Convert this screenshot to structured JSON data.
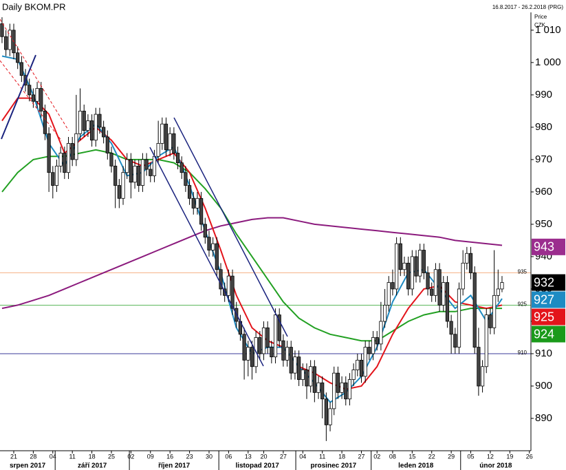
{
  "chart_data": {
    "type": "candlestick",
    "title": "Daily BKOM.PR",
    "subtitle": "16.8.2017 - 26.2.2018 (PRG)",
    "ylabel": "Price",
    "unit": "CZK",
    "ylim": [
      880,
      1017.2
    ],
    "yticks": [
      890,
      900,
      910,
      920,
      930,
      940,
      950,
      960,
      970,
      980,
      990,
      {
        "value": 1000,
        "label": "1 000"
      },
      {
        "value": 1010,
        "label": "1 010"
      }
    ],
    "xlim": [
      -0.52,
      135.4
    ],
    "xticks": [
      {
        "value": 3,
        "label": "21"
      },
      {
        "value": 8,
        "label": "28"
      },
      {
        "value": 13,
        "label": "04"
      },
      {
        "value": 18,
        "label": "11"
      },
      {
        "value": 23,
        "label": "18"
      },
      {
        "value": 28,
        "label": "25"
      },
      {
        "value": 33,
        "label": "02"
      },
      {
        "value": 38,
        "label": "09"
      },
      {
        "value": 43,
        "label": "16"
      },
      {
        "value": 48,
        "label": "23"
      },
      {
        "value": 53,
        "label": "30"
      },
      {
        "value": 58,
        "label": "06"
      },
      {
        "value": 63,
        "label": "13"
      },
      {
        "value": 67,
        "label": "20"
      },
      {
        "value": 72,
        "label": "27"
      },
      {
        "value": 77,
        "label": "04"
      },
      {
        "value": 82,
        "label": "11"
      },
      {
        "value": 87,
        "label": "18"
      },
      {
        "value": 92,
        "label": "27"
      },
      {
        "value": 96,
        "label": "02"
      },
      {
        "value": 100,
        "label": "08"
      },
      {
        "value": 105,
        "label": "15"
      },
      {
        "value": 110,
        "label": "22"
      },
      {
        "value": 115,
        "label": "29"
      },
      {
        "value": 120,
        "label": "05"
      },
      {
        "value": 125,
        "label": "12"
      },
      {
        "value": 130,
        "label": "19"
      },
      {
        "value": 135,
        "label": "26"
      }
    ],
    "months": [
      {
        "label": "srpen 2017",
        "start": -0.52,
        "end": 13.6
      },
      {
        "label": "září 2017",
        "start": 13.6,
        "end": 32.6
      },
      {
        "label": "říjen 2017",
        "start": 32.6,
        "end": 55.5
      },
      {
        "label": "listopad 2017",
        "start": 55.5,
        "end": 75.2
      },
      {
        "label": "prosinec 2017",
        "start": 75.2,
        "end": 94.5
      },
      {
        "label": "leden 2018",
        "start": 94.5,
        "end": 117.4
      },
      {
        "label": "únor 2018",
        "start": 117.4,
        "end": 135.4
      }
    ],
    "up_color": "#ffffff",
    "down_color": "#444444",
    "open": [
      1012,
      1008,
      1004,
      1010,
      1003,
      1000,
      996,
      993,
      990,
      988,
      992,
      985,
      978,
      966,
      962,
      968,
      972,
      966,
      975,
      970,
      978,
      985,
      979,
      982,
      976,
      984,
      980,
      977,
      972,
      968,
      962,
      958,
      966,
      970,
      963,
      968,
      962,
      970,
      967,
      965,
      971,
      975,
      981,
      973,
      978,
      972,
      969,
      966,
      962,
      958,
      955,
      958,
      950,
      946,
      942,
      944,
      936,
      930,
      928,
      934,
      924,
      920,
      916,
      908,
      912,
      906,
      915,
      910,
      918,
      912,
      909,
      922,
      914,
      908,
      912,
      904,
      909,
      902,
      905,
      900,
      906,
      898,
      901,
      896,
      888,
      893,
      904,
      898,
      901,
      896,
      902,
      905,
      908,
      903,
      912,
      910,
      915,
      913,
      920,
      925,
      932,
      930,
      944,
      936,
      938,
      930,
      940,
      934,
      942,
      935,
      930,
      928,
      936,
      925,
      932,
      920,
      916,
      912,
      930,
      938,
      941,
      935,
      912,
      900,
      906,
      922,
      918,
      928,
      930
    ],
    "high": [
      1014,
      1010,
      1012,
      1012,
      1005,
      1002,
      998,
      995,
      992,
      994,
      994,
      987,
      980,
      968,
      970,
      974,
      974,
      977,
      977,
      990,
      992,
      987,
      984,
      984,
      986,
      986,
      982,
      979,
      974,
      970,
      964,
      968,
      972,
      972,
      970,
      970,
      972,
      972,
      969,
      973,
      982,
      983,
      983,
      980,
      980,
      974,
      971,
      968,
      964,
      960,
      960,
      960,
      952,
      948,
      946,
      946,
      938,
      932,
      936,
      936,
      926,
      922,
      918,
      914,
      914,
      917,
      917,
      920,
      920,
      914,
      924,
      924,
      916,
      914,
      914,
      911,
      911,
      907,
      907,
      908,
      908,
      903,
      903,
      898,
      895,
      906,
      906,
      903,
      903,
      904,
      907,
      910,
      910,
      914,
      914,
      917,
      917,
      926,
      930,
      934,
      936,
      946,
      946,
      940,
      940,
      942,
      942,
      944,
      944,
      937,
      932,
      938,
      938,
      934,
      934,
      922,
      918,
      932,
      942,
      943,
      943,
      937,
      918,
      908,
      924,
      924,
      942,
      936,
      934
    ],
    "low": [
      1006,
      1002,
      1002,
      1001,
      998,
      994,
      991,
      988,
      986,
      986,
      983,
      976,
      960,
      958,
      960,
      966,
      964,
      964,
      968,
      968,
      976,
      977,
      977,
      974,
      974,
      978,
      975,
      970,
      966,
      955,
      955,
      956,
      964,
      958,
      961,
      960,
      960,
      965,
      963,
      963,
      969,
      973,
      971,
      971,
      970,
      967,
      964,
      960,
      956,
      953,
      953,
      948,
      944,
      940,
      940,
      934,
      928,
      926,
      926,
      922,
      918,
      914,
      902,
      903,
      902,
      904,
      908,
      908,
      910,
      907,
      907,
      912,
      906,
      906,
      902,
      902,
      900,
      900,
      896,
      898,
      895,
      896,
      890,
      883,
      886,
      891,
      896,
      896,
      894,
      894,
      900,
      903,
      901,
      901,
      908,
      908,
      911,
      911,
      918,
      923,
      928,
      928,
      934,
      934,
      928,
      928,
      932,
      932,
      933,
      928,
      926,
      926,
      923,
      923,
      918,
      910,
      910,
      910,
      928,
      936,
      933,
      910,
      897,
      898,
      904,
      916,
      916,
      926,
      929
    ],
    "close": [
      1008,
      1004,
      1010,
      1003,
      1000,
      996,
      993,
      990,
      988,
      992,
      985,
      978,
      966,
      962,
      968,
      972,
      966,
      975,
      970,
      978,
      985,
      979,
      982,
      976,
      984,
      980,
      977,
      972,
      968,
      962,
      958,
      966,
      970,
      963,
      968,
      962,
      970,
      967,
      965,
      971,
      975,
      981,
      973,
      978,
      972,
      969,
      966,
      962,
      958,
      955,
      958,
      950,
      946,
      942,
      944,
      936,
      930,
      928,
      934,
      924,
      920,
      916,
      908,
      912,
      906,
      915,
      910,
      918,
      912,
      909,
      922,
      914,
      908,
      912,
      904,
      909,
      902,
      905,
      900,
      906,
      898,
      901,
      896,
      888,
      893,
      904,
      898,
      901,
      896,
      902,
      905,
      908,
      903,
      912,
      910,
      915,
      913,
      920,
      925,
      932,
      930,
      944,
      936,
      938,
      930,
      940,
      934,
      942,
      935,
      930,
      928,
      936,
      925,
      932,
      920,
      916,
      912,
      930,
      938,
      941,
      935,
      912,
      900,
      906,
      922,
      918,
      928,
      930,
      932
    ],
    "lines_x": [
      0,
      4,
      8,
      12,
      16,
      20,
      24,
      28,
      32,
      36,
      40,
      44,
      48,
      52,
      56,
      60,
      64,
      68,
      72,
      76,
      80,
      84,
      88,
      92,
      96,
      100,
      104,
      108,
      112,
      116,
      120,
      124,
      128
    ],
    "series": [
      {
        "color": "#8b1a7d",
        "values": [
          924,
          925,
          926.5,
          928,
          930,
          932,
          934,
          936,
          938,
          940,
          942,
          944,
          946,
          948,
          949.5,
          950.5,
          951.5,
          952,
          952,
          951,
          950,
          949.5,
          949,
          948.5,
          948,
          947.5,
          947,
          946.5,
          946,
          945,
          944.5,
          944,
          943.5
        ]
      },
      {
        "color": "#22a022",
        "values": [
          960,
          966,
          970,
          971,
          971,
          972,
          973,
          972,
          970,
          970,
          970,
          969,
          966,
          961,
          955,
          947,
          940,
          933,
          926,
          921,
          918,
          916,
          915,
          914,
          914,
          917,
          920,
          922,
          923,
          923,
          924,
          924,
          924
        ]
      },
      {
        "color": "#e3141b",
        "values": [
          982,
          989,
          989,
          984,
          972,
          976,
          980,
          976,
          970,
          968,
          970,
          972,
          966,
          955,
          942,
          928,
          918,
          914,
          912,
          906,
          904,
          901,
          899,
          900,
          906,
          916,
          924,
          930,
          931,
          926,
          925,
          924,
          925
        ]
      },
      {
        "color": "#1e8bc3",
        "values": [
          1002,
          1001,
          990,
          975,
          968,
          977,
          981,
          975,
          965,
          966,
          971,
          974,
          962,
          948,
          935,
          918,
          910,
          912,
          912,
          906,
          901,
          895,
          898,
          903,
          912,
          926,
          935,
          936,
          930,
          924,
          928,
          920,
          927
        ]
      }
    ],
    "levels": [
      {
        "value": 935,
        "color": "#f4b183"
      },
      {
        "value": 925,
        "color": "#5cb85c"
      },
      {
        "value": 910,
        "color": "#3a3a9a"
      }
    ],
    "last_labels": [
      {
        "value": 943,
        "color": "#9b2d8e"
      },
      {
        "value": 932,
        "color": "#000000"
      },
      {
        "value": 927,
        "color": "#1e8bc3"
      },
      {
        "value": 925,
        "color": "#e3141b"
      },
      {
        "value": 924,
        "color": "#1a9a1a"
      }
    ]
  }
}
